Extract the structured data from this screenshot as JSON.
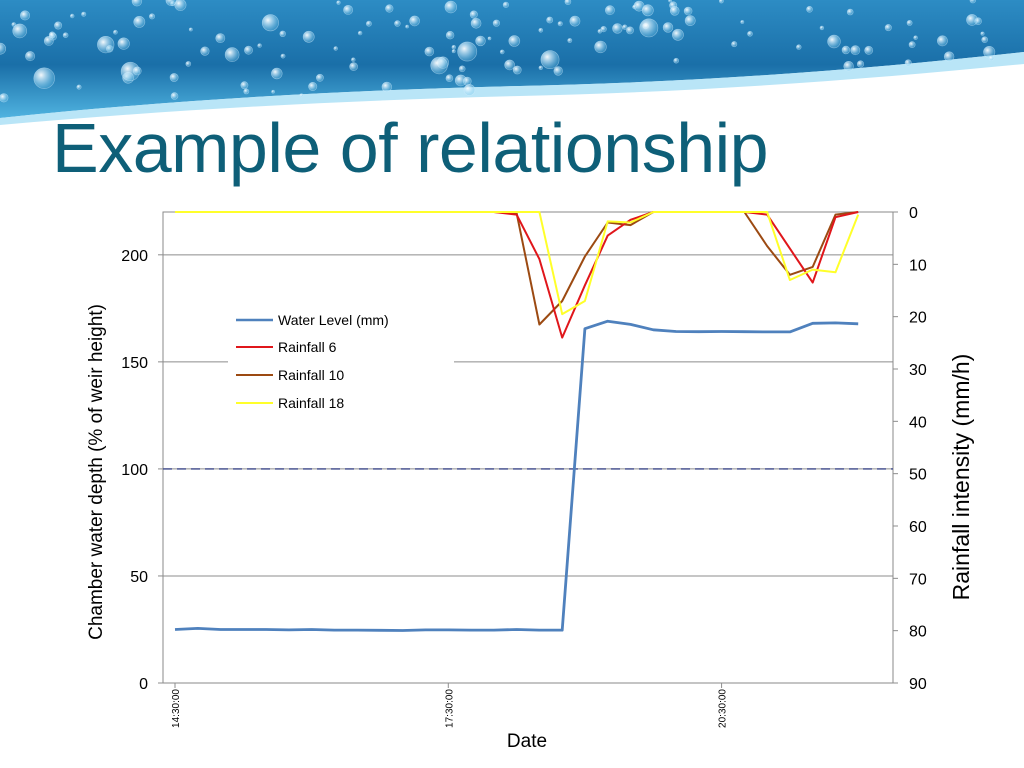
{
  "slide": {
    "title": "Example of relationship",
    "title_color": "#0e5f78"
  },
  "chart_data": {
    "type": "line",
    "title": "",
    "xlabel": "Date",
    "ylabel_left": "Chamber water depth (% of weir height)",
    "ylabel_right": "Rainfall intensity (mm/h)",
    "ylim_left": [
      0,
      220
    ],
    "yticks_left": [
      0,
      50,
      100,
      150,
      200
    ],
    "ylim_right_inverted": [
      0,
      90
    ],
    "yticks_right": [
      0,
      10,
      20,
      30,
      40,
      50,
      60,
      70,
      80,
      90
    ],
    "x_index_range": [
      0,
      31
    ],
    "x_ticks": [
      {
        "index": 0,
        "label": "14:30:00"
      },
      {
        "index": 12,
        "label": "17:30:00"
      },
      {
        "index": 24,
        "label": "20:30:00"
      }
    ],
    "reference_line": {
      "axis": "left",
      "value": 100,
      "style": "dashed",
      "color": "#3f4a8c"
    },
    "legend": [
      "Water Level (mm)",
      "Rainfall 6",
      "Rainfall 10",
      "Rainfall 18"
    ],
    "series": [
      {
        "name": "Water Level (mm)",
        "axis": "left",
        "color": "#4f81bd",
        "values": [
          25,
          25.5,
          25,
          25,
          25,
          24.8,
          25,
          24.7,
          24.7,
          24.6,
          24.5,
          24.8,
          24.8,
          24.7,
          24.7,
          25,
          24.7,
          24.7,
          165.5,
          169,
          167.5,
          165,
          164.2,
          164.1,
          164.2,
          164.1,
          164,
          164,
          168,
          168.2,
          167.8
        ]
      },
      {
        "name": "Rainfall 6",
        "axis": "right",
        "color": "#e0161b",
        "values": [
          0,
          0,
          0,
          0,
          0,
          0,
          0,
          0,
          0,
          0,
          0,
          0,
          0,
          0,
          0,
          0.5,
          9,
          24,
          14,
          4.5,
          1.5,
          0,
          0,
          0,
          0,
          0,
          0.5,
          7,
          13.5,
          1,
          0
        ]
      },
      {
        "name": "Rainfall 10",
        "axis": "right",
        "color": "#9c4a12",
        "values": [
          0,
          0,
          0,
          0,
          0,
          0,
          0,
          0,
          0,
          0,
          0,
          0,
          0,
          0,
          0,
          0.2,
          21.5,
          17,
          8.5,
          2,
          2.5,
          0,
          0,
          0,
          0,
          0,
          6.5,
          12,
          10.5,
          0.5,
          0
        ]
      },
      {
        "name": "Rainfall 18",
        "axis": "right",
        "color": "#ffff2a",
        "values": [
          0,
          0,
          0,
          0,
          0,
          0,
          0,
          0,
          0,
          0,
          0,
          0,
          0,
          0,
          0,
          0,
          0,
          19.5,
          17,
          1.8,
          2,
          0,
          0,
          0,
          0,
          0,
          0,
          13,
          11,
          11.5,
          0.5
        ]
      }
    ]
  }
}
